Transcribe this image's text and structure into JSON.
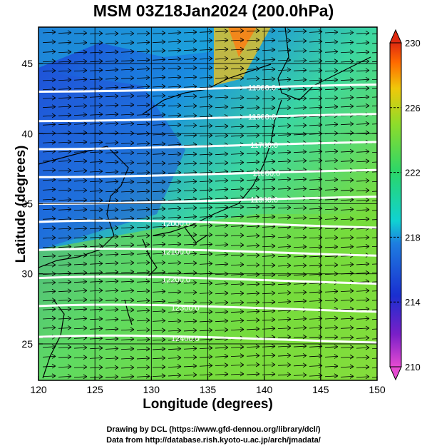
{
  "title": "MSM 03Z18Jan2024 (200.0hPa)",
  "x_axis": {
    "label": "Longitude (degrees)",
    "ticks": [
      "120",
      "125",
      "130",
      "135",
      "140",
      "145",
      "150"
    ],
    "values": [
      120,
      125,
      130,
      135,
      140,
      145,
      150
    ],
    "range": [
      120,
      150
    ]
  },
  "y_axis": {
    "label": "Latitude  (degrees)",
    "ticks": [
      "25",
      "30",
      "35",
      "40",
      "45"
    ],
    "values": [
      25,
      30,
      35,
      40,
      45
    ],
    "range": [
      22.4,
      47.6
    ]
  },
  "colorbar": {
    "labels": [
      "230",
      "226",
      "222",
      "218",
      "214",
      "210"
    ],
    "values": [
      230,
      226,
      222,
      218,
      214,
      210
    ],
    "range": [
      210,
      230
    ]
  },
  "contour_labels": [
    {
      "text": "11500.0",
      "lon": 139.8,
      "lat": 43.3
    },
    {
      "text": "11600.0",
      "lon": 139.8,
      "lat": 41.2
    },
    {
      "text": "11700.0",
      "lon": 140.0,
      "lat": 39.2
    },
    {
      "text": "11800.0",
      "lon": 140.2,
      "lat": 37.2
    },
    {
      "text": "11900.0",
      "lon": 140.0,
      "lat": 35.3
    },
    {
      "text": "12000.0",
      "lon": 132.2,
      "lat": 33.6
    },
    {
      "text": "12100.0",
      "lon": 132.2,
      "lat": 31.6
    },
    {
      "text": "12200.0",
      "lon": 132.2,
      "lat": 29.6
    },
    {
      "text": "12300.0",
      "lon": 133.0,
      "lat": 27.6
    },
    {
      "text": "12400.0",
      "lon": 133.0,
      "lat": 25.4
    }
  ],
  "credits": {
    "line1": "Drawing by DCL (https://www.gfd-dennou.org/library/dcl/)",
    "line2": "Data from http://database.rish.kyoto-u.ac.jp/arch/jmadata/"
  },
  "colors": {
    "cold": "#1f3fd0",
    "mid": "#00d2c0",
    "warm": "#3cd23c",
    "hot": "#ff6a00"
  }
}
